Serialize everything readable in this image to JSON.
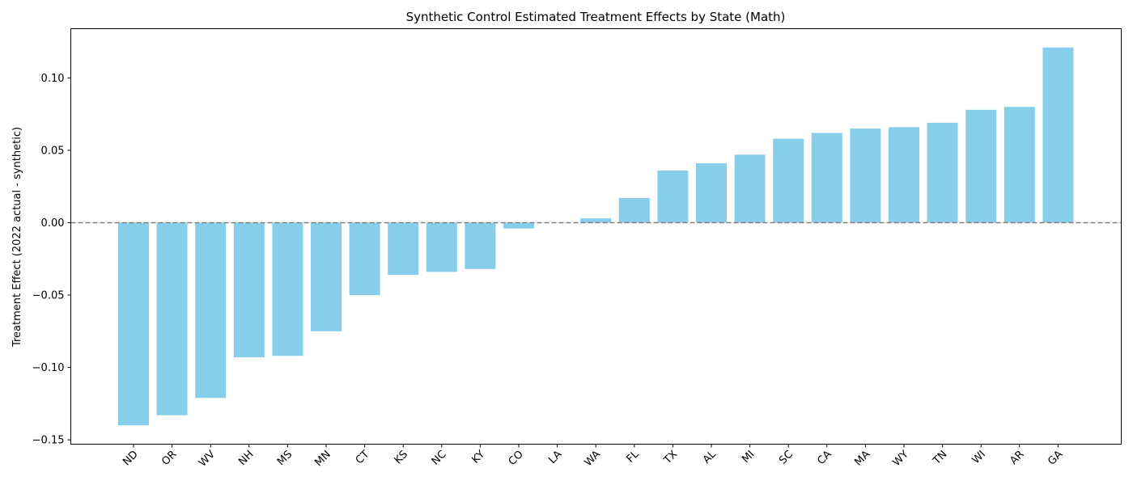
{
  "chart_data": {
    "type": "bar",
    "title": "Synthetic Control Estimated Treatment Effects by State (Math)",
    "xlabel": "",
    "ylabel": "Treatment Effect (2022 actual - synthetic)",
    "categories": [
      "ND",
      "OR",
      "WV",
      "NH",
      "MS",
      "MN",
      "CT",
      "KS",
      "NC",
      "KY",
      "CO",
      "LA",
      "WA",
      "FL",
      "TX",
      "AL",
      "MI",
      "SC",
      "CA",
      "MA",
      "WY",
      "TN",
      "WI",
      "AR",
      "GA"
    ],
    "values": [
      -0.14,
      -0.133,
      -0.121,
      -0.093,
      -0.092,
      -0.075,
      -0.05,
      -0.036,
      -0.034,
      -0.032,
      -0.004,
      0.0,
      0.003,
      0.017,
      0.036,
      0.041,
      0.047,
      0.058,
      0.062,
      0.065,
      0.066,
      0.069,
      0.078,
      0.08,
      0.121
    ],
    "yticks": [
      -0.15,
      -0.1,
      -0.05,
      0.0,
      0.05,
      0.1
    ],
    "ytick_labels": [
      "−0.15",
      "−0.10",
      "−0.05",
      "0.00",
      "0.05",
      "0.10"
    ],
    "ylim": [
      -0.153,
      0.134
    ],
    "reference_line": {
      "y": 0,
      "style": "dashed",
      "color": "#808080"
    },
    "bar_color": "#87CEEB",
    "grid": false,
    "legend": "none"
  }
}
